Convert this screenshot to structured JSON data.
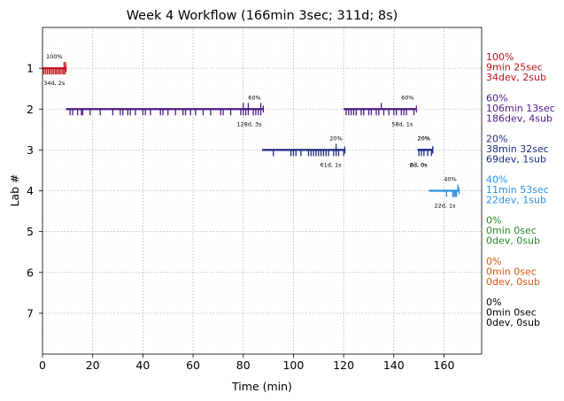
{
  "chart_data": {
    "type": "timeline",
    "title": "Week 4 Workflow (166min 3sec; 311d; 8s)",
    "xlabel": "Time (min)",
    "ylabel": "Lab #",
    "xlim": [
      0,
      175
    ],
    "ylim": [
      8,
      0
    ],
    "xticks": [
      0,
      20,
      40,
      60,
      80,
      100,
      120,
      140,
      160
    ],
    "yticks": [
      1,
      2,
      3,
      4,
      5,
      6,
      7
    ],
    "grid": true,
    "labs": [
      {
        "lab": 1,
        "color": "#c0141c",
        "summary": [
          "100%",
          "9min 25sec",
          "34dev, 2sub"
        ],
        "segments": [
          {
            "start": 0,
            "end": 9.4,
            "pct": "100%",
            "note": "34d, 2s",
            "devs": [
              0.5,
              1.2,
              1.9,
              2.6,
              3.2,
              3.9,
              4.5,
              5.2,
              5.8,
              6.5,
              7.1,
              7.8,
              8.4,
              9.0
            ],
            "subs": [
              8.6,
              9.2
            ]
          }
        ]
      },
      {
        "lab": 2,
        "color": "#4b1a85",
        "summary": [
          "60%",
          "106min 13sec",
          "186dev, 4sub"
        ],
        "segments": [
          {
            "start": 9.4,
            "end": 88,
            "pct": "60%",
            "note": "128d, 3s",
            "devs": [
              11,
              12,
              14,
              15.5,
              16,
              19,
              23,
              28,
              31,
              32,
              34,
              35,
              37,
              40,
              41,
              43,
              47,
              48,
              50,
              53,
              56,
              57,
              59,
              61,
              64,
              67,
              71,
              72,
              75,
              79,
              80,
              81,
              82,
              84,
              85,
              86,
              87
            ],
            "subs": [
              80,
              82,
              87
            ]
          },
          {
            "start": 120,
            "end": 149,
            "pct": "60%",
            "note": "58d, 1s",
            "devs": [
              121,
              122,
              123,
              124,
              125,
              127,
              128,
              130,
              131,
              133,
              134,
              136,
              138,
              140,
              141,
              143,
              144,
              145,
              148
            ],
            "subs": [
              135
            ]
          }
        ]
      },
      {
        "lab": 3,
        "color": "#1c2a80",
        "summary": [
          "20%",
          "38min 32sec",
          "69dev, 1sub"
        ],
        "segments": [
          {
            "start": 87.5,
            "end": 120.5,
            "pct": "20%",
            "note": "61d, 1s",
            "devs": [
              92,
              99,
              100,
              101,
              103,
              106,
              107,
              108,
              109,
              110,
              111,
              112,
              113,
              114,
              116,
              117,
              118,
              120
            ],
            "subs": [
              117
            ]
          },
          {
            "start": 149.5,
            "end": 155.5,
            "pct": "20%",
            "note": "6d, 0s",
            "devs": [
              150,
              151,
              152,
              153.5,
              155
            ],
            "subs": []
          },
          {
            "start": 149.5,
            "end": 155.5,
            "pct": "20%",
            "note": "2d, 0s",
            "devs": [],
            "subs": []
          }
        ]
      },
      {
        "lab": 4,
        "color": "#2b8fe0",
        "summary": [
          "40%",
          "11min 53sec",
          "22dev, 1sub"
        ],
        "segments": [
          {
            "start": 154,
            "end": 166,
            "pct": "40%",
            "note": "22d, 1s",
            "devs": [
              161,
              163.5,
              164,
              164.5,
              165
            ],
            "subs": [
              165.5
            ]
          }
        ]
      },
      {
        "lab": 5,
        "color": "#2a8a2a",
        "summary": [
          "0%",
          "0min 0sec",
          "0dev, 0sub"
        ],
        "segments": []
      },
      {
        "lab": 6,
        "color": "#e0560e",
        "summary": [
          "0%",
          "0min 0sec",
          "0dev, 0sub"
        ],
        "segments": []
      },
      {
        "lab": 7,
        "color": "#000000",
        "summary": [
          "0%",
          "0min 0sec",
          "0dev, 0sub"
        ],
        "segments": []
      }
    ]
  }
}
